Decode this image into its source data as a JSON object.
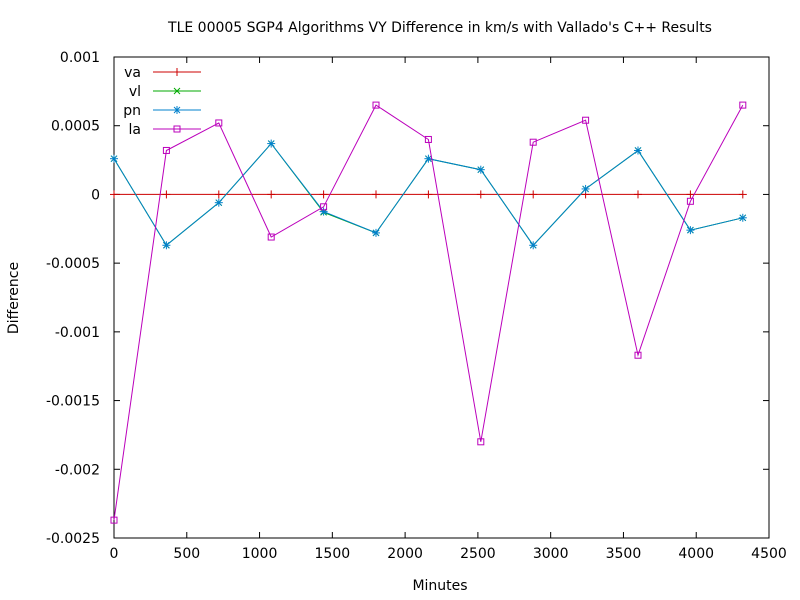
{
  "chart_data": {
    "type": "line",
    "title": "TLE 00005 SGP4 Algorithms VY Difference in km/s with Vallado's C++ Results",
    "xlabel": "Minutes",
    "ylabel": "Difference",
    "xlim": [
      0,
      4500
    ],
    "ylim": [
      -0.0025,
      0.001
    ],
    "xticks": [
      0,
      500,
      1000,
      1500,
      2000,
      2500,
      3000,
      3500,
      4000,
      4500
    ],
    "xtick_labels": [
      "0",
      "500",
      "1000",
      "1500",
      "2000",
      "2500",
      "3000",
      "3500",
      "4000",
      "4500"
    ],
    "yticks": [
      0.001,
      0.0005,
      0,
      -0.0005,
      -0.001,
      -0.0015,
      -0.002,
      -0.0025
    ],
    "ytick_labels": [
      "0.001",
      "0.0005",
      "0",
      "-0.0005",
      "-0.001",
      "-0.0015",
      "-0.002",
      "-0.0025"
    ],
    "grid": false,
    "legend_position": "top-left",
    "x": [
      0,
      360,
      720,
      1080,
      1440,
      1800,
      2160,
      2520,
      2880,
      3240,
      3600,
      3960,
      4320
    ],
    "series": [
      {
        "name": "va",
        "color": "#cc0000",
        "marker": "plus",
        "values": [
          0,
          0,
          0,
          0,
          0,
          0,
          0,
          0,
          0,
          0,
          0,
          0,
          0
        ]
      },
      {
        "name": "vl",
        "color": "#00aa00",
        "marker": "cross",
        "values": [
          0.00026,
          -0.00037,
          -6e-05,
          0.00037,
          -0.00013,
          -0.00028,
          0.00026,
          0.00018,
          -0.00037,
          4e-05,
          0.00032,
          -0.00026,
          -0.00017
        ]
      },
      {
        "name": "pn",
        "color": "#0080cc",
        "marker": "star",
        "values": [
          0.00026,
          -0.00037,
          -6e-05,
          0.00037,
          -0.000125,
          -0.00028,
          0.00026,
          0.00018,
          -0.00037,
          4e-05,
          0.00032,
          -0.00026,
          -0.00017
        ]
      },
      {
        "name": "la",
        "color": "#bb00bb",
        "marker": "square",
        "values": [
          -0.00237,
          0.00032,
          0.00052,
          -0.00031,
          -9e-05,
          0.00065,
          0.0004,
          -0.0018,
          0.00038,
          0.00054,
          -0.00117,
          -5e-05,
          0.00065
        ]
      }
    ]
  }
}
